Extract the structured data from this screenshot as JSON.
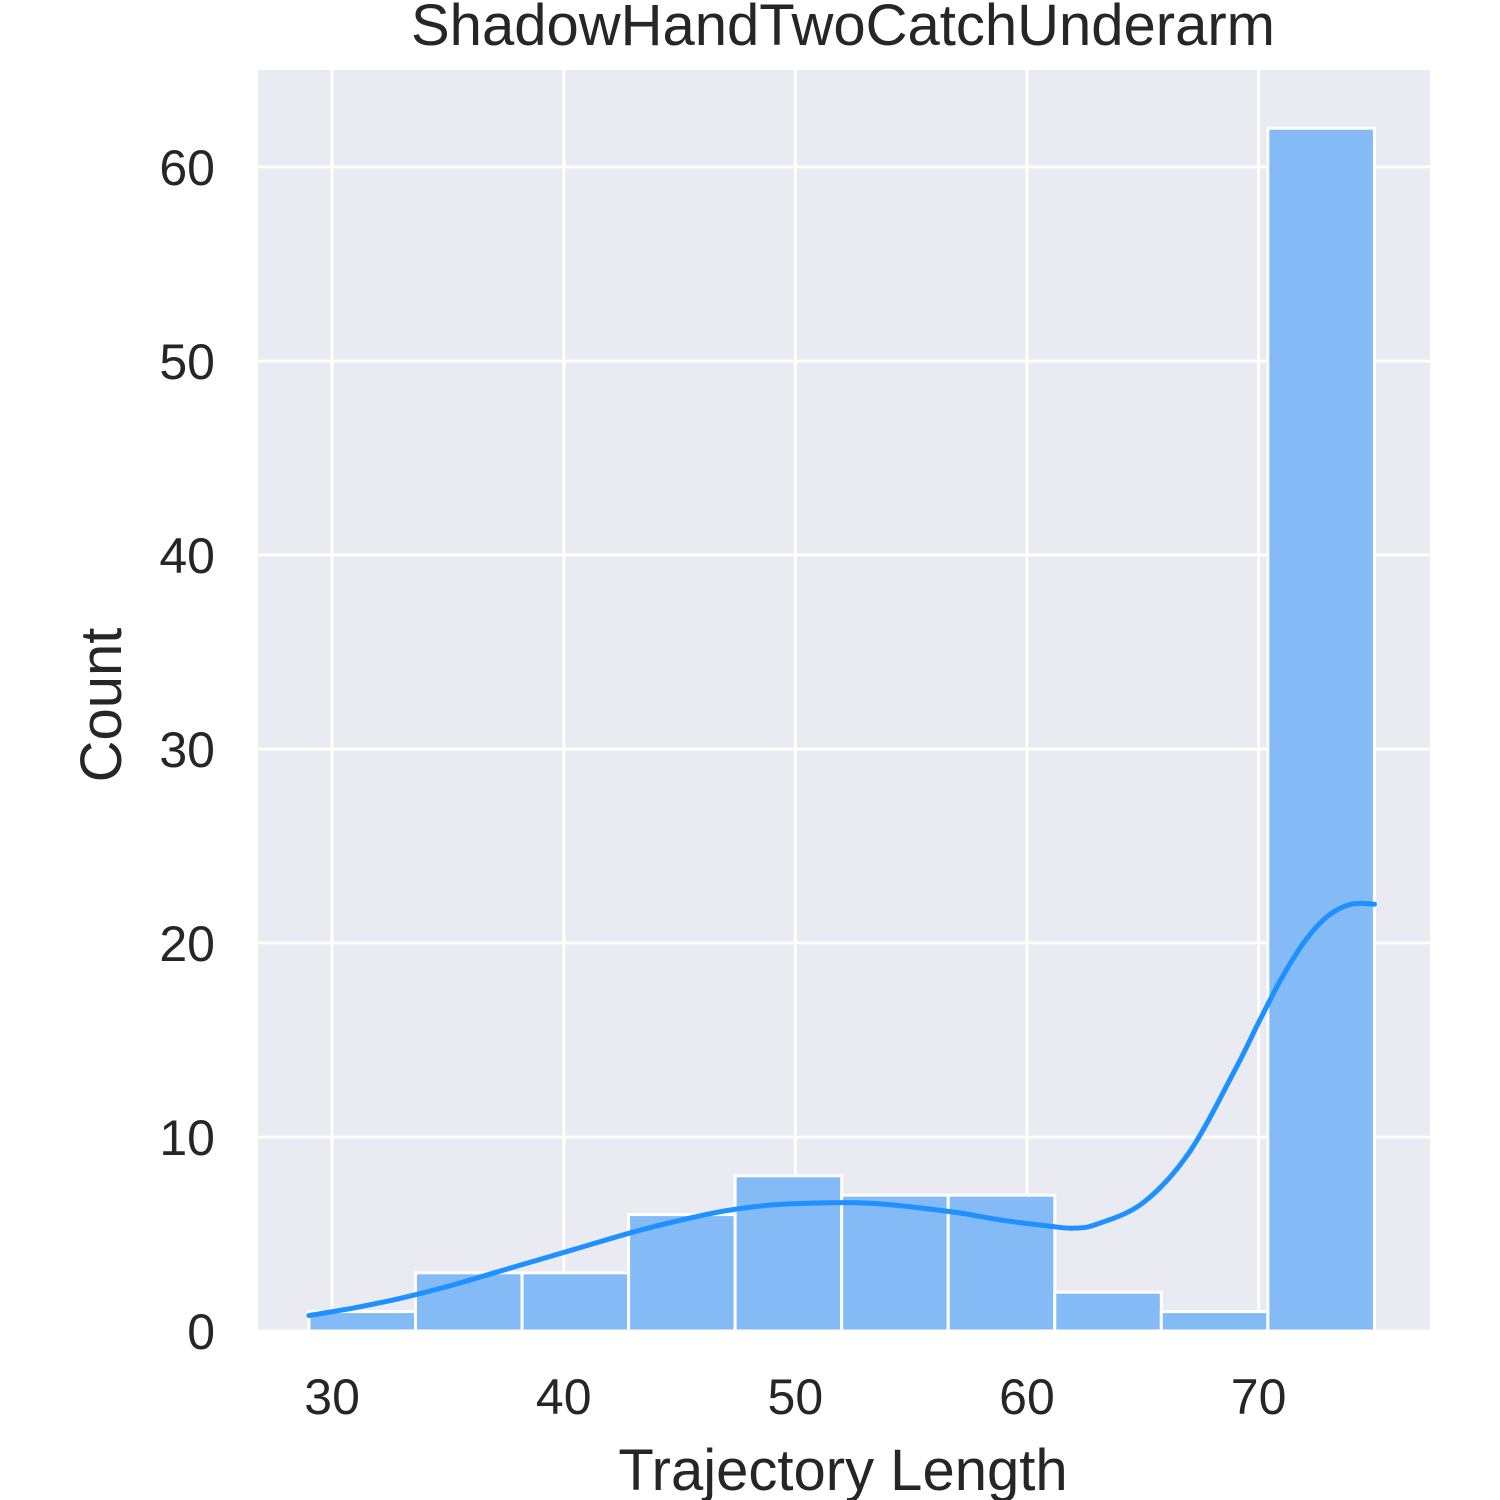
{
  "chart_data": {
    "type": "histogram",
    "title": "ShadowHandTwoCatchUnderarm",
    "xlabel": "Trajectory Length",
    "ylabel": "Count",
    "xlim": [
      26.8,
      77.4
    ],
    "ylim": [
      0,
      65
    ],
    "xticks": [
      30,
      40,
      50,
      60,
      70
    ],
    "yticks": [
      0,
      10,
      20,
      30,
      40,
      50,
      60
    ],
    "grid": true,
    "bins": [
      {
        "x0": 29.0,
        "x1": 33.6,
        "count": 1
      },
      {
        "x0": 33.6,
        "x1": 38.2,
        "count": 3
      },
      {
        "x0": 38.2,
        "x1": 42.8,
        "count": 3
      },
      {
        "x0": 42.8,
        "x1": 47.4,
        "count": 6
      },
      {
        "x0": 47.4,
        "x1": 52.0,
        "count": 8
      },
      {
        "x0": 52.0,
        "x1": 56.6,
        "count": 7
      },
      {
        "x0": 56.6,
        "x1": 61.2,
        "count": 7
      },
      {
        "x0": 61.2,
        "x1": 65.8,
        "count": 2
      },
      {
        "x0": 65.8,
        "x1": 70.4,
        "count": 1
      },
      {
        "x0": 70.4,
        "x1": 75.0,
        "count": 62
      }
    ],
    "kde": {
      "x": [
        29,
        31,
        33,
        35,
        37,
        39,
        41,
        43,
        45,
        47,
        49,
        51,
        53,
        55,
        57,
        59,
        61,
        62,
        63,
        65,
        67,
        69,
        70,
        71,
        72,
        73,
        74,
        75
      ],
      "y": [
        0.8,
        1.2,
        1.7,
        2.3,
        3.0,
        3.7,
        4.4,
        5.1,
        5.7,
        6.2,
        6.5,
        6.6,
        6.6,
        6.4,
        6.1,
        5.7,
        5.4,
        5.3,
        5.5,
        6.6,
        9.2,
        13.5,
        15.9,
        18.2,
        20.1,
        21.4,
        22.0,
        22.0
      ]
    },
    "colors": {
      "bar_fill": "#84BAF6",
      "kde_line": "#1E90FF",
      "plot_background": "#EAEAF2",
      "grid": "#ffffff",
      "text": "#262626"
    }
  }
}
